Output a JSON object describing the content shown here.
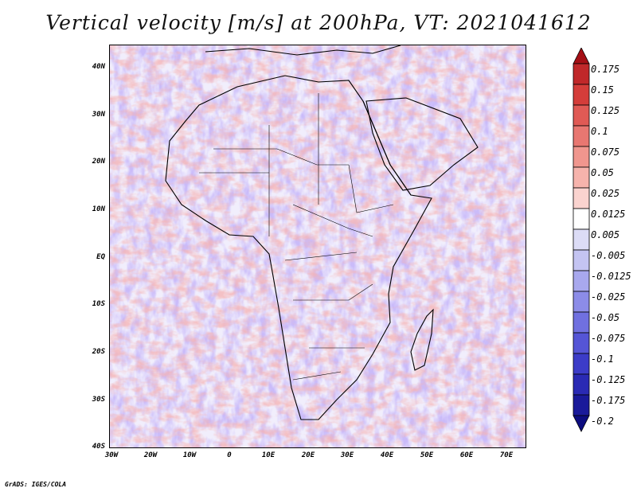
{
  "title": "Vertical velocity [m/s] at 200hPa, VT: 2021041612",
  "credit": "GrADS: IGES/COLA",
  "map": {
    "lon_range": [
      -30,
      75
    ],
    "lat_range": [
      -40,
      45
    ],
    "lat_ticks": [
      "40N",
      "30N",
      "20N",
      "10N",
      "EQ",
      "10S",
      "20S",
      "30S",
      "40S"
    ],
    "lon_ticks": [
      "30W",
      "20W",
      "10W",
      "0",
      "10E",
      "20E",
      "30E",
      "40E",
      "50E",
      "60E",
      "70E"
    ]
  },
  "colorbar": {
    "levels": [
      "0.175",
      "0.15",
      "0.125",
      "0.1",
      "0.075",
      "0.05",
      "0.025",
      "0.0125",
      "0.005",
      "-0.005",
      "-0.0125",
      "-0.025",
      "-0.05",
      "-0.075",
      "-0.1",
      "-0.125",
      "-0.175",
      "-0.2"
    ],
    "colors": [
      "#a50f15",
      "#c0282a",
      "#d43d3a",
      "#e05a55",
      "#e87771",
      "#f0968e",
      "#f6b3ac",
      "#fad3cf",
      "#ffffff",
      "#dcdcf6",
      "#c4c4f2",
      "#a8a8ee",
      "#8c8ce8",
      "#7070e0",
      "#5555d6",
      "#3c3cc8",
      "#2a2ab4",
      "#1a1a9a",
      "#0d0d80"
    ]
  }
}
